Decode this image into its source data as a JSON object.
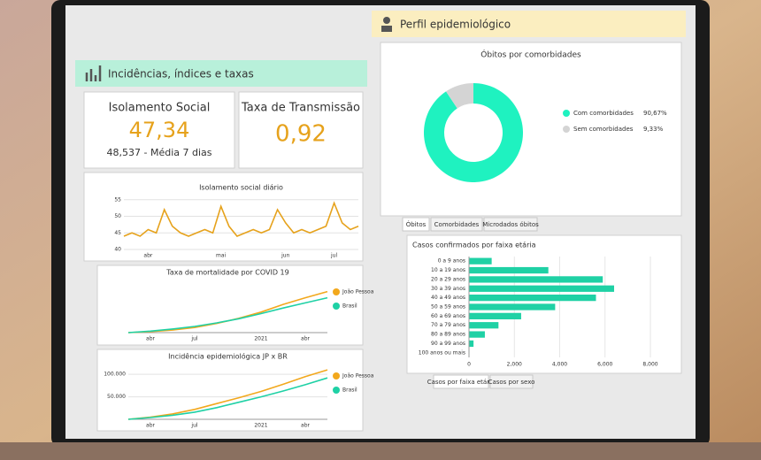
{
  "left_header": {
    "title": "Incidências, índices e taxas"
  },
  "isolamento": {
    "title": "Isolamento Social",
    "value": "47,34",
    "subtitle": "48,537 - Média 7 dias"
  },
  "taxa": {
    "title": "Taxa de Transmissão",
    "value": "0,92"
  },
  "isolamento_chart": {
    "type": "line",
    "title": "Isolamento social diário",
    "categories": [
      null,
      null,
      null,
      "abr",
      null,
      null,
      null,
      null,
      null,
      null,
      null,
      null,
      "mai",
      null,
      null,
      null,
      null,
      null,
      null,
      null,
      "jun",
      null,
      null,
      null,
      null,
      null,
      "jul",
      null,
      null,
      null
    ],
    "series": [
      {
        "name": "Isolamento",
        "color": "#e6a21c",
        "values": [
          44,
          45,
          44,
          46,
          45,
          52,
          47,
          45,
          44,
          45,
          46,
          45,
          53,
          47,
          44,
          45,
          46,
          45,
          46,
          52,
          48,
          45,
          46,
          45,
          46,
          47,
          54,
          48,
          46,
          47
        ]
      }
    ],
    "ylim": [
      40,
      56
    ],
    "yticks": [
      40,
      45,
      50,
      55
    ]
  },
  "mortalidade_chart": {
    "type": "line",
    "title": "Taxa de mortalidade por COVID 19",
    "categories": [
      null,
      "abr",
      null,
      "jul",
      null,
      null,
      "2021",
      null,
      "abr",
      null
    ],
    "series": [
      {
        "name": "João Pessoa",
        "color": "#f2a81d",
        "values": [
          0,
          2,
          5,
          10,
          18,
          28,
          40,
          55,
          68,
          80
        ]
      },
      {
        "name": "Brasil",
        "color": "#1fd1a5",
        "values": [
          0,
          3,
          7,
          12,
          19,
          27,
          37,
          48,
          58,
          68
        ]
      }
    ],
    "ylim": [
      0,
      100
    ]
  },
  "incidencia_chart": {
    "type": "line",
    "title": "Incidência epidemiológica JP x BR",
    "categories": [
      null,
      "abr",
      null,
      "jul",
      null,
      null,
      "2021",
      null,
      "abr",
      null
    ],
    "series": [
      {
        "name": "João Pessoa",
        "color": "#f2a81d",
        "values": [
          0,
          5000,
          12000,
          22000,
          35000,
          48000,
          62000,
          78000,
          95000,
          110000
        ]
      },
      {
        "name": "Brasil",
        "color": "#1fd1a5",
        "values": [
          0,
          4000,
          9000,
          16000,
          26000,
          38000,
          50000,
          63000,
          77000,
          92000
        ]
      }
    ],
    "ylim": [
      0,
      120000
    ],
    "yticks": [
      {
        "value": 50000,
        "label": "50.000"
      },
      {
        "value": 100000,
        "label": "100.000"
      }
    ]
  },
  "right_header": {
    "title": "Perfil epidemiológico"
  },
  "donut_chart": {
    "type": "pie",
    "title": "Óbitos por comorbidades",
    "categories": [
      "Com comorbidades",
      "Sem comorbidades"
    ],
    "values": [
      90.67,
      9.33
    ],
    "value_labels": [
      "90,67%",
      "9,33%"
    ],
    "colors": [
      "#1ff2c0",
      "#d4d4d4"
    ]
  },
  "tabs_top": [
    "Óbitos",
    "Comorbidades",
    "Microdados óbitos"
  ],
  "bar_chart": {
    "type": "hbar",
    "title": "Casos confirmados por faixa etária",
    "categories": [
      "0 a 9 anos",
      "10 a 19 anos",
      "20 a 29 anos",
      "30 a 39 anos",
      "40 a 49 anos",
      "50 a 59 anos",
      "60 a 69 anos",
      "70 a 79 anos",
      "80 a 89 anos",
      "90 a 99 anos",
      "100 anos ou mais"
    ],
    "values": [
      1000,
      3500,
      5900,
      6400,
      5600,
      3800,
      2300,
      1300,
      700,
      200,
      20
    ],
    "color": "#1fd1a5",
    "xlim": [
      0,
      8000
    ],
    "xticks": [
      0,
      {
        "value": 2000,
        "label": "2,000"
      },
      {
        "value": 4000,
        "label": "4,000"
      },
      {
        "value": 6000,
        "label": "6,000"
      },
      {
        "value": 8000,
        "label": "8,000"
      }
    ],
    "grid": true
  },
  "tabs_bottom": [
    "Casos por faixa etária",
    "Casos por sexo"
  ]
}
